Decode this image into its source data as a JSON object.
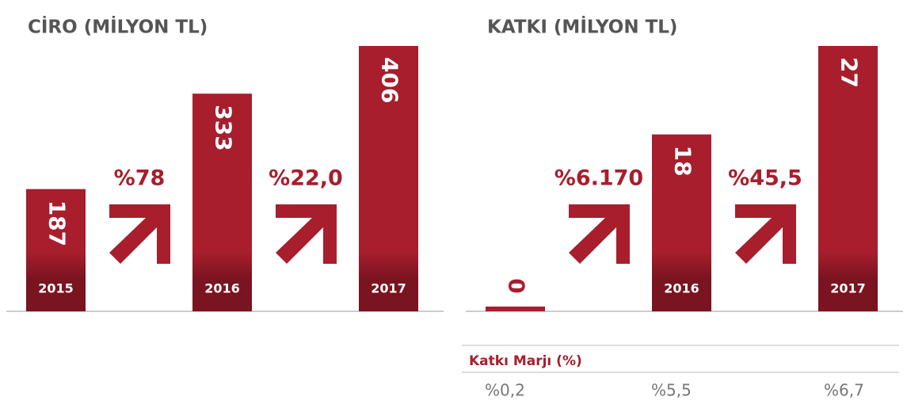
{
  "chart_data": [
    {
      "type": "bar",
      "title": "CİRO (MİLYON TL)",
      "categories": [
        "2015",
        "2016",
        "2017"
      ],
      "values": [
        187,
        333,
        406
      ],
      "color": "#a81e2d",
      "annotations": [
        "%78",
        "%22,0"
      ]
    },
    {
      "type": "bar",
      "title": "KATKI (MİLYON TL)",
      "categories": [
        null,
        "2016",
        "2017"
      ],
      "values": [
        0,
        18,
        27
      ],
      "color": "#a81e2d",
      "annotations": [
        "%6.170",
        "%45,5"
      ]
    }
  ],
  "table": {
    "title": "Katkı Marjı (%)",
    "values": [
      "%0,2",
      "%5,5",
      "%6,7"
    ]
  }
}
